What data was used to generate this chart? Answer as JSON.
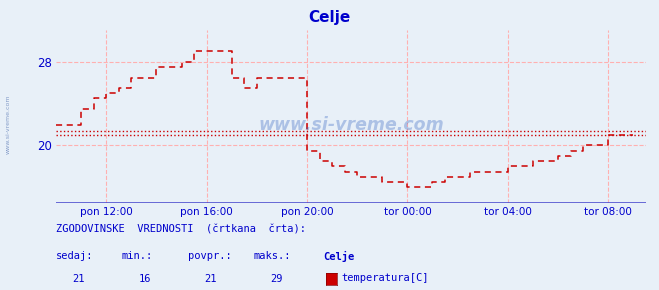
{
  "title": "Celje",
  "title_color": "#0000cc",
  "bg_color": "#e8f0f8",
  "plot_bg_color": "#e8f0f8",
  "grid_color": "#ffb0b0",
  "axis_color": "#0000cc",
  "line_color": "#cc0000",
  "watermark": "www.si-vreme.com",
  "xtick_labels": [
    "pon 12:00",
    "pon 16:00",
    "pon 20:00",
    "tor 00:00",
    "tor 04:00",
    "tor 08:00"
  ],
  "xtick_hours": [
    12,
    16,
    20,
    24,
    28,
    32
  ],
  "ytick_values": [
    20,
    28
  ],
  "ylim": [
    14.5,
    31.0
  ],
  "xlim_hours": [
    10.0,
    33.5
  ],
  "avg_line1": 21.4,
  "avg_line2": 21.0,
  "footer_text1": "ZGODOVINSKE  VREDNOSTI  (črtkana  črta):",
  "footer_col_labels": [
    "sedaj:",
    "min.:",
    "povpr.:",
    "maks.:"
  ],
  "footer_col_values": [
    "21",
    "16",
    "21",
    "29"
  ],
  "footer_series": "Celje",
  "footer_unit": "temperatura[C]",
  "time_hours": [
    10.0,
    10.5,
    11.0,
    11.5,
    12.0,
    12.5,
    13.0,
    13.5,
    14.0,
    14.5,
    15.0,
    15.5,
    16.0,
    16.5,
    17.0,
    17.5,
    18.0,
    18.5,
    19.0,
    19.5,
    20.0,
    20.5,
    21.0,
    21.5,
    22.0,
    22.5,
    23.0,
    23.5,
    24.0,
    24.5,
    25.0,
    25.5,
    26.0,
    26.5,
    27.0,
    27.5,
    28.0,
    28.5,
    29.0,
    29.5,
    30.0,
    30.5,
    31.0,
    31.5,
    32.0,
    32.5,
    33.0
  ],
  "temp_values": [
    22.0,
    22.0,
    23.5,
    24.5,
    25.0,
    25.5,
    26.5,
    26.5,
    27.5,
    27.5,
    28.0,
    29.0,
    29.0,
    29.0,
    26.5,
    25.5,
    26.5,
    26.5,
    26.5,
    26.5,
    19.5,
    18.5,
    18.0,
    17.5,
    17.0,
    17.0,
    16.5,
    16.5,
    16.0,
    16.0,
    16.5,
    17.0,
    17.0,
    17.5,
    17.5,
    17.5,
    18.0,
    18.0,
    18.5,
    18.5,
    19.0,
    19.5,
    20.0,
    20.0,
    21.0,
    21.0,
    21.0
  ]
}
